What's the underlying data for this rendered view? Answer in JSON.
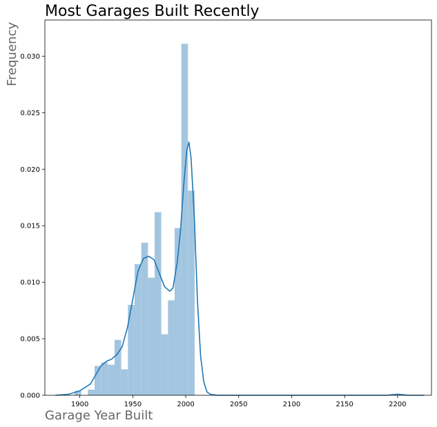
{
  "chart_data": {
    "type": "bar",
    "title": "Most Garages Built Recently",
    "xlabel": "Garage Year Built",
    "ylabel": "Frequency",
    "xlim": [
      1867,
      2232
    ],
    "ylim": [
      0,
      0.0332
    ],
    "xticks": [
      1900,
      1950,
      2000,
      2050,
      2100,
      2150,
      2200
    ],
    "yticks": [
      0.0,
      0.005,
      0.01,
      0.015,
      0.02,
      0.025,
      0.03
    ],
    "ytick_labels": [
      "0.000",
      "0.005",
      "0.010",
      "0.015",
      "0.020",
      "0.025",
      "0.030"
    ],
    "grid": false,
    "bar_color": "#a3c6e0",
    "line_color": "#1f77b4",
    "histogram": {
      "bin_width": 6.3,
      "bins": [
        {
          "x_start": 1895.0,
          "height": 0.0004
        },
        {
          "x_start": 1907.6,
          "height": 0.0005
        },
        {
          "x_start": 1913.9,
          "height": 0.0026
        },
        {
          "x_start": 1920.2,
          "height": 0.0029
        },
        {
          "x_start": 1926.5,
          "height": 0.0027
        },
        {
          "x_start": 1932.8,
          "height": 0.0049
        },
        {
          "x_start": 1939.1,
          "height": 0.0023
        },
        {
          "x_start": 1945.4,
          "height": 0.008
        },
        {
          "x_start": 1951.7,
          "height": 0.0116
        },
        {
          "x_start": 1958.0,
          "height": 0.0135
        },
        {
          "x_start": 1964.3,
          "height": 0.0104
        },
        {
          "x_start": 1970.6,
          "height": 0.0162
        },
        {
          "x_start": 1976.9,
          "height": 0.0054
        },
        {
          "x_start": 1983.2,
          "height": 0.0084
        },
        {
          "x_start": 1989.5,
          "height": 0.0148
        },
        {
          "x_start": 1995.8,
          "height": 0.0311
        },
        {
          "x_start": 2002.1,
          "height": 0.0181
        },
        {
          "x_start": 2200.0,
          "height": 0.0001
        }
      ]
    },
    "kde": {
      "x": [
        1877,
        1890,
        1900,
        1910,
        1915,
        1920,
        1925,
        1930,
        1935,
        1940,
        1945,
        1950,
        1955,
        1960,
        1965,
        1970,
        1975,
        1980,
        1985,
        1988,
        1992,
        1995,
        1998,
        2001,
        2003,
        2005,
        2008,
        2011,
        2014,
        2017,
        2020,
        2023,
        2030,
        2050,
        2100,
        2150,
        2190,
        2200,
        2210,
        2225
      ],
      "y": [
        0.0,
        0.0001,
        0.0004,
        0.001,
        0.0018,
        0.0026,
        0.003,
        0.0032,
        0.0036,
        0.0043,
        0.006,
        0.0085,
        0.011,
        0.0121,
        0.0123,
        0.012,
        0.0108,
        0.0096,
        0.0092,
        0.0095,
        0.0118,
        0.0145,
        0.0185,
        0.0217,
        0.0224,
        0.021,
        0.016,
        0.0085,
        0.0035,
        0.0012,
        0.0003,
        0.0001,
        0.0,
        0.0,
        0.0,
        0.0,
        0.0,
        0.0001,
        0.0,
        0.0
      ]
    }
  }
}
